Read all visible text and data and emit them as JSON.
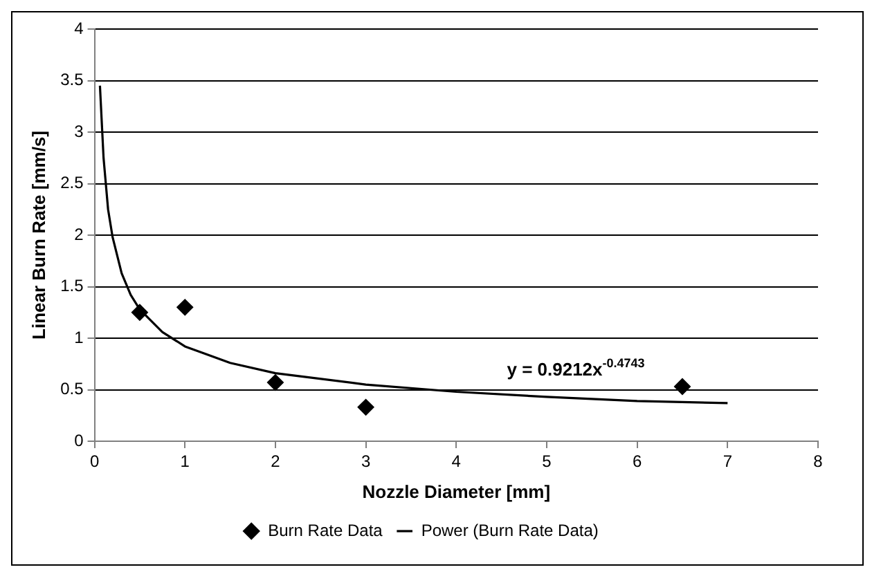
{
  "chart_data": {
    "type": "scatter",
    "xlabel": "Nozzle Diameter [mm]",
    "ylabel": "Linear Burn Rate [mm/s]",
    "series": [
      {
        "name": "Burn Rate Data",
        "type": "scatter",
        "color": "#000000",
        "marker": "diamond",
        "x": [
          0.5,
          1,
          2,
          3,
          6.5
        ],
        "values": [
          1.25,
          1.3,
          0.57,
          0.33,
          0.53
        ]
      },
      {
        "name": "Power (Burn Rate Data)",
        "type": "line",
        "color": "#000000",
        "marker": "none",
        "line_style": "solid",
        "x": [
          0.06,
          0.1,
          0.15,
          0.2,
          0.3,
          0.4,
          0.5,
          0.75,
          1,
          1.5,
          2,
          3,
          4,
          5,
          6,
          7
        ],
        "values": [
          3.45,
          2.75,
          2.25,
          1.98,
          1.63,
          1.42,
          1.28,
          1.06,
          0.92,
          0.76,
          0.66,
          0.55,
          0.48,
          0.43,
          0.39,
          0.37
        ]
      }
    ],
    "xlim": [
      0,
      8
    ],
    "xticks": [
      0,
      1,
      2,
      3,
      4,
      5,
      6,
      7,
      8
    ],
    "ylim": [
      0,
      4
    ],
    "yticks": [
      0,
      0.5,
      1,
      1.5,
      2,
      2.5,
      3,
      3.5,
      4
    ],
    "grid": "y",
    "legend": "bottom",
    "annotations": [
      "y = 0.9212x$^{-0.4743}$"
    ]
  }
}
